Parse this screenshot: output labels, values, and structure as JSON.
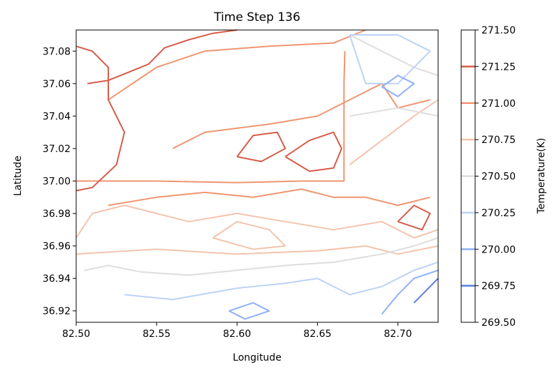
{
  "chart_data": {
    "type": "contour",
    "title": "Time Step 136",
    "xlabel": "Longitude",
    "ylabel": "Latitude",
    "xlim": [
      82.5,
      82.725
    ],
    "ylim": [
      36.913,
      37.093
    ],
    "xticks": [
      "82.50",
      "82.55",
      "82.60",
      "82.65",
      "82.70"
    ],
    "yticks": [
      "36.92",
      "36.94",
      "36.96",
      "36.98",
      "37.00",
      "37.02",
      "37.04",
      "37.06",
      "37.08"
    ],
    "grid": false,
    "colorbar": {
      "label": "Temperature(K)",
      "range": [
        269.5,
        271.5
      ],
      "ticks": [
        "269.50",
        "269.75",
        "270.00",
        "270.25",
        "270.50",
        "270.75",
        "271.00",
        "271.25",
        "271.50"
      ],
      "level_colors": {
        "269.75": "#5b7be0",
        "270.00": "#8fb0f8",
        "270.25": "#bcd2f7",
        "270.50": "#dddddd",
        "270.75": "#f4c3ab",
        "271.00": "#f0946f",
        "271.25": "#d65a48"
      }
    },
    "contours": [
      {
        "level": "271.00",
        "path": [
          [
            82.5,
            37.0
          ],
          [
            82.55,
            37.0
          ],
          [
            82.6,
            36.999
          ],
          [
            82.64,
            37.0
          ],
          [
            82.6665,
            37.0
          ],
          [
            82.6665,
            37.03
          ],
          [
            82.6665,
            37.06
          ],
          [
            82.667,
            37.08
          ]
        ]
      },
      {
        "level": "271.00",
        "path": [
          [
            82.52,
            36.985
          ],
          [
            82.55,
            36.99
          ],
          [
            82.58,
            36.993
          ],
          [
            82.61,
            36.99
          ],
          [
            82.64,
            36.995
          ],
          [
            82.66,
            36.99
          ],
          [
            82.68,
            36.99
          ],
          [
            82.7,
            36.985
          ],
          [
            82.72,
            36.99
          ]
        ]
      },
      {
        "level": "271.00",
        "path": [
          [
            82.56,
            37.02
          ],
          [
            82.58,
            37.03
          ],
          [
            82.62,
            37.035
          ],
          [
            82.65,
            37.04
          ],
          [
            82.67,
            37.05
          ],
          [
            82.69,
            37.06
          ],
          [
            82.7,
            37.045
          ],
          [
            82.72,
            37.05
          ]
        ]
      },
      {
        "level": "271.00",
        "path": [
          [
            82.52,
            37.05
          ],
          [
            82.55,
            37.07
          ],
          [
            82.58,
            37.08
          ],
          [
            82.62,
            37.083
          ],
          [
            82.66,
            37.085
          ],
          [
            82.68,
            37.093
          ]
        ]
      },
      {
        "level": "271.25",
        "path": [
          [
            82.5,
            37.083
          ],
          [
            82.51,
            37.08
          ],
          [
            82.52,
            37.07
          ],
          [
            82.52,
            37.05
          ],
          [
            82.53,
            37.03
          ],
          [
            82.525,
            37.01
          ],
          [
            82.51,
            36.996
          ],
          [
            82.5,
            36.994
          ]
        ]
      },
      {
        "level": "271.25",
        "path": [
          [
            82.507,
            37.06
          ],
          [
            82.52,
            37.062
          ],
          [
            82.53,
            37.066
          ],
          [
            82.545,
            37.072
          ],
          [
            82.555,
            37.082
          ],
          [
            82.57,
            37.087
          ],
          [
            82.585,
            37.091
          ],
          [
            82.6,
            37.093
          ]
        ]
      },
      {
        "level": "271.25",
        "path": [
          [
            82.63,
            37.015
          ],
          [
            82.645,
            37.025
          ],
          [
            82.66,
            37.03
          ],
          [
            82.665,
            37.02
          ],
          [
            82.66,
            37.008
          ],
          [
            82.645,
            37.006
          ],
          [
            82.63,
            37.015
          ]
        ]
      },
      {
        "level": "271.25",
        "path": [
          [
            82.6,
            37.015
          ],
          [
            82.61,
            37.028
          ],
          [
            82.625,
            37.03
          ],
          [
            82.63,
            37.02
          ],
          [
            82.615,
            37.012
          ],
          [
            82.6,
            37.015
          ]
        ]
      },
      {
        "level": "271.25",
        "path": [
          [
            82.7,
            36.975
          ],
          [
            82.71,
            36.985
          ],
          [
            82.72,
            36.98
          ],
          [
            82.715,
            36.97
          ],
          [
            82.7,
            36.975
          ]
        ]
      },
      {
        "level": "270.75",
        "path": [
          [
            82.5,
            36.965
          ],
          [
            82.51,
            36.98
          ],
          [
            82.53,
            36.985
          ],
          [
            82.57,
            36.975
          ],
          [
            82.6,
            36.98
          ],
          [
            82.63,
            36.975
          ],
          [
            82.66,
            36.97
          ],
          [
            82.69,
            36.975
          ],
          [
            82.71,
            36.965
          ],
          [
            82.725,
            36.97
          ]
        ]
      },
      {
        "level": "270.75",
        "path": [
          [
            82.585,
            36.965
          ],
          [
            82.6,
            36.975
          ],
          [
            82.62,
            36.97
          ],
          [
            82.63,
            36.96
          ],
          [
            82.61,
            36.958
          ],
          [
            82.585,
            36.965
          ]
        ]
      },
      {
        "level": "270.75",
        "path": [
          [
            82.5,
            36.955
          ],
          [
            82.55,
            36.958
          ],
          [
            82.6,
            36.955
          ],
          [
            82.65,
            36.957
          ],
          [
            82.68,
            36.96
          ],
          [
            82.7,
            36.955
          ],
          [
            82.725,
            36.96
          ]
        ]
      },
      {
        "level": "270.75",
        "path": [
          [
            82.67,
            37.01
          ],
          [
            82.69,
            37.025
          ],
          [
            82.71,
            37.04
          ],
          [
            82.725,
            37.05
          ]
        ]
      },
      {
        "level": "270.50",
        "path": [
          [
            82.505,
            36.945
          ],
          [
            82.52,
            36.948
          ],
          [
            82.54,
            36.944
          ],
          [
            82.57,
            36.942
          ],
          [
            82.6,
            36.945
          ],
          [
            82.63,
            36.948
          ],
          [
            82.66,
            36.95
          ],
          [
            82.69,
            36.955
          ],
          [
            82.71,
            36.96
          ],
          [
            82.725,
            36.965
          ]
        ]
      },
      {
        "level": "270.50",
        "path": [
          [
            82.67,
            37.09
          ],
          [
            82.69,
            37.08
          ],
          [
            82.71,
            37.07
          ],
          [
            82.725,
            37.065
          ]
        ]
      },
      {
        "level": "270.50",
        "path": [
          [
            82.67,
            37.04
          ],
          [
            82.7,
            37.045
          ],
          [
            82.725,
            37.04
          ]
        ]
      },
      {
        "level": "270.25",
        "path": [
          [
            82.53,
            36.93
          ],
          [
            82.56,
            36.927
          ],
          [
            82.6,
            36.934
          ],
          [
            82.63,
            36.937
          ],
          [
            82.65,
            36.94
          ],
          [
            82.67,
            36.93
          ],
          [
            82.69,
            36.935
          ],
          [
            82.71,
            36.945
          ],
          [
            82.725,
            36.95
          ]
        ]
      },
      {
        "level": "270.25",
        "path": [
          [
            82.67,
            37.09
          ],
          [
            82.7,
            37.09
          ],
          [
            82.72,
            37.08
          ],
          [
            82.7,
            37.06
          ],
          [
            82.68,
            37.06
          ],
          [
            82.67,
            37.09
          ]
        ]
      },
      {
        "level": "270.00",
        "path": [
          [
            82.595,
            36.92
          ],
          [
            82.61,
            36.925
          ],
          [
            82.62,
            36.92
          ],
          [
            82.605,
            36.915
          ],
          [
            82.595,
            36.92
          ]
        ]
      },
      {
        "level": "270.00",
        "path": [
          [
            82.69,
            36.918
          ],
          [
            82.7,
            36.93
          ],
          [
            82.71,
            36.94
          ],
          [
            82.725,
            36.945
          ]
        ]
      },
      {
        "level": "270.00",
        "path": [
          [
            82.69,
            37.058
          ],
          [
            82.7,
            37.065
          ],
          [
            82.71,
            37.06
          ],
          [
            82.7,
            37.052
          ],
          [
            82.69,
            37.058
          ]
        ]
      },
      {
        "level": "269.75",
        "path": [
          [
            82.71,
            36.925
          ],
          [
            82.72,
            36.935
          ],
          [
            82.725,
            36.94
          ]
        ]
      }
    ]
  }
}
